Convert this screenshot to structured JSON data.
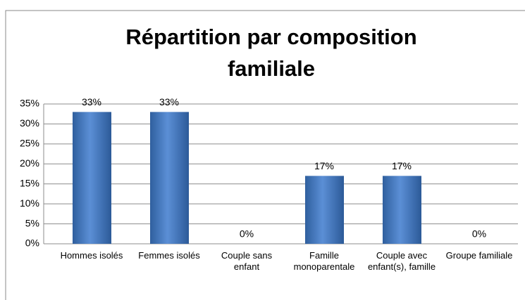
{
  "chart_data": {
    "type": "bar",
    "title": "Répartition par composition familiale",
    "categories": [
      "Hommes isolés",
      "Femmes isolés",
      "Couple sans enfant",
      "Famille monoparentale",
      "Couple avec enfant(s), famille",
      "Groupe familiale"
    ],
    "values": [
      33,
      33,
      0,
      17,
      17,
      0
    ],
    "value_labels": [
      "33%",
      "33%",
      "0%",
      "17%",
      "17%",
      "0%"
    ],
    "color": "#4f81bd",
    "ylim": [
      0,
      35
    ],
    "yticks": [
      {
        "value": 0,
        "label": "0%"
      },
      {
        "value": 5,
        "label": "5%"
      },
      {
        "value": 10,
        "label": "10%"
      },
      {
        "value": 15,
        "label": "15%"
      },
      {
        "value": 20,
        "label": "20%"
      },
      {
        "value": 25,
        "label": "25%"
      },
      {
        "value": 30,
        "label": "30%"
      },
      {
        "value": 35,
        "label": "35%"
      }
    ],
    "grid": true
  }
}
